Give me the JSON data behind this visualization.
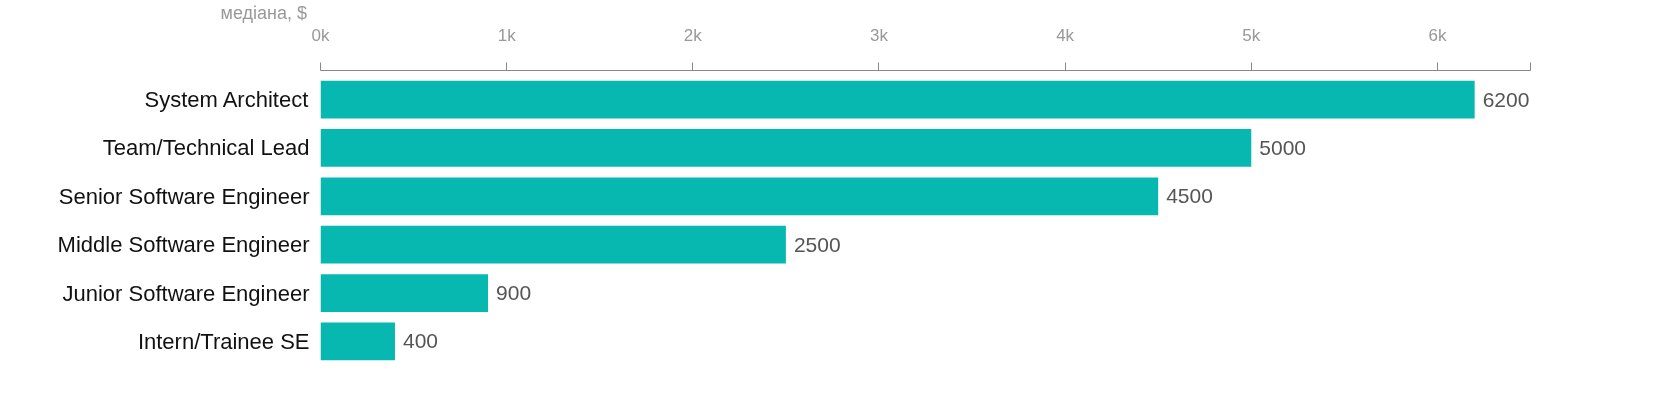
{
  "chart_data": {
    "type": "bar",
    "orientation": "horizontal",
    "xlabel": "медіана, $",
    "categories": [
      "System Architect",
      "Team/Technical Lead",
      "Senior Software Engineer",
      "Middle Software Engineer",
      "Junior Software Engineer",
      "Intern/Trainee SE"
    ],
    "values": [
      6200,
      5000,
      4500,
      2500,
      900,
      400
    ],
    "color": "#07b8b0",
    "xlim": [
      0,
      6500
    ],
    "xticks": [
      {
        "value": 0,
        "label": "0k"
      },
      {
        "value": 1000,
        "label": "1k"
      },
      {
        "value": 2000,
        "label": "2k"
      },
      {
        "value": 3000,
        "label": "3k"
      },
      {
        "value": 4000,
        "label": "4k"
      },
      {
        "value": 5000,
        "label": "5k"
      },
      {
        "value": 6000,
        "label": "6k"
      },
      {
        "value": 6500,
        "label": null
      }
    ],
    "data_labels": true,
    "grid": false
  }
}
